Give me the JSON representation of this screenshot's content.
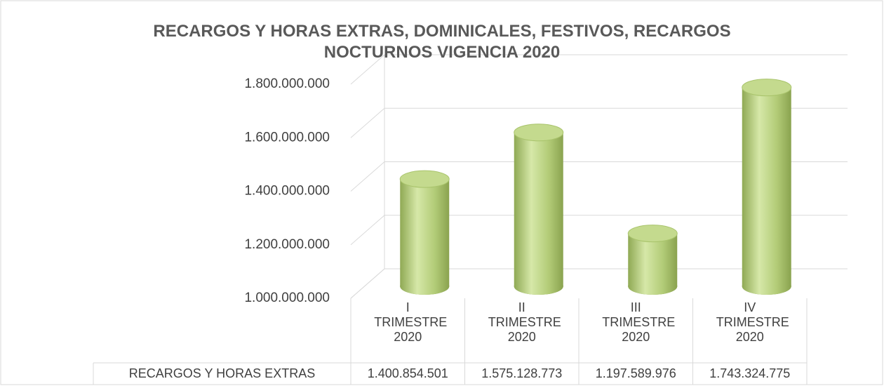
{
  "chart_data": {
    "type": "bar3d",
    "title": "RECARGOS Y  HORAS EXTRAS, DOMINICALES, FESTIVOS, RECARGOS NOCTURNOS  VIGENCIA 2020",
    "categories": [
      "I TRIMESTRE 2020",
      "II TRIMESTRE 2020",
      "III TRIMESTRE 2020",
      "IV TRIMESTRE 2020"
    ],
    "series": [
      {
        "name": "RECARGOS Y HORAS EXTRAS",
        "color": "#a9c46c",
        "values": [
          1400854501,
          1575128773,
          1197589976,
          1743324775
        ],
        "value_labels": [
          "1.400.854.501",
          "1.575.128.773",
          "1.197.589.976",
          "1.743.324.775"
        ]
      }
    ],
    "ylim": [
      1000000000,
      1800000000
    ],
    "yticks": [
      {
        "value": 1000000000,
        "label": "1.000.000.000"
      },
      {
        "value": 1200000000,
        "label": "1.200.000.000"
      },
      {
        "value": 1400000000,
        "label": "1.400.000.000"
      },
      {
        "value": 1600000000,
        "label": "1.600.000.000"
      },
      {
        "value": 1800000000,
        "label": "1.800.000.000"
      }
    ],
    "grid": true
  }
}
